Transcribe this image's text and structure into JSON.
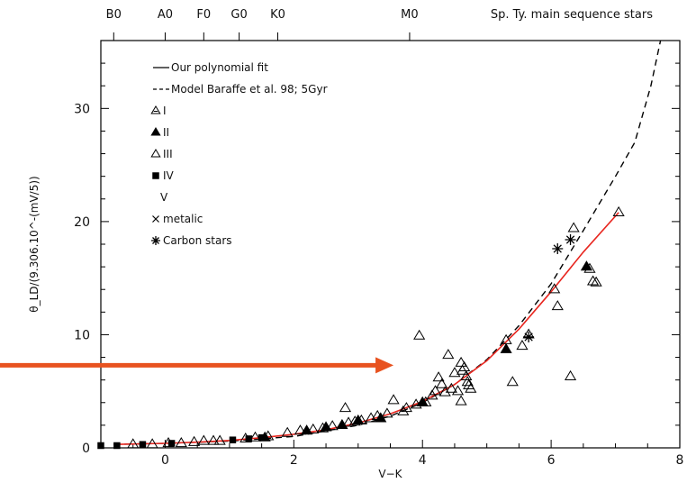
{
  "chart_data": {
    "type": "scatter",
    "xlabel": "V−K",
    "ylabel": "θ_LD/(9.306.10^-(mV/5))",
    "xlim": [
      -1,
      8
    ],
    "ylim": [
      0,
      36
    ],
    "x_ticks": [
      0,
      2,
      4,
      6,
      8
    ],
    "y_ticks": [
      0,
      10,
      20,
      30
    ],
    "top_axis": {
      "title": "Sp. Ty. main sequence stars",
      "labels": [
        {
          "text": "B0",
          "x": -0.8
        },
        {
          "text": "A0",
          "x": 0.0
        },
        {
          "text": "F0",
          "x": 0.6
        },
        {
          "text": "G0",
          "x": 1.15
        },
        {
          "text": "K0",
          "x": 1.75
        },
        {
          "text": "M0",
          "x": 3.8
        }
      ]
    },
    "legend": {
      "placement": "top-left",
      "entries": [
        {
          "label": "Our polynomial fit",
          "marker": "solid-line"
        },
        {
          "label": "Model Baraffe et al. 98; 5Gyr",
          "marker": "dashed-line"
        },
        {
          "label": "I",
          "marker": "triangle-hatched"
        },
        {
          "label": "II",
          "marker": "triangle-filled"
        },
        {
          "label": "III",
          "marker": "triangle-open"
        },
        {
          "label": "IV",
          "marker": "square-filled"
        },
        {
          "label": "V",
          "marker": "none"
        },
        {
          "label": "metalic",
          "marker": "cross"
        },
        {
          "label": "Carbon stars",
          "marker": "asterisk"
        }
      ]
    },
    "series": [
      {
        "name": "III",
        "marker": "triangle-open",
        "points": [
          [
            -0.5,
            0.3
          ],
          [
            -0.2,
            0.3
          ],
          [
            0.05,
            0.4
          ],
          [
            0.25,
            0.4
          ],
          [
            0.45,
            0.5
          ],
          [
            0.6,
            0.6
          ],
          [
            0.75,
            0.6
          ],
          [
            0.85,
            0.6
          ],
          [
            1.25,
            0.8
          ],
          [
            1.4,
            0.9
          ],
          [
            1.6,
            1.0
          ],
          [
            1.9,
            1.3
          ],
          [
            2.1,
            1.5
          ],
          [
            2.3,
            1.6
          ],
          [
            2.45,
            1.7
          ],
          [
            2.6,
            1.9
          ],
          [
            2.8,
            3.5
          ],
          [
            2.85,
            2.2
          ],
          [
            2.95,
            2.3
          ],
          [
            3.05,
            2.4
          ],
          [
            3.2,
            2.6
          ],
          [
            3.3,
            2.8
          ],
          [
            3.45,
            3.0
          ],
          [
            3.55,
            4.2
          ],
          [
            3.7,
            3.2
          ],
          [
            3.75,
            3.5
          ],
          [
            3.9,
            3.8
          ],
          [
            3.95,
            9.9
          ],
          [
            4.05,
            4.0
          ],
          [
            4.15,
            4.6
          ],
          [
            4.2,
            5.0
          ],
          [
            4.25,
            6.2
          ],
          [
            4.3,
            5.6
          ],
          [
            4.35,
            4.9
          ],
          [
            4.4,
            8.2
          ],
          [
            4.45,
            5.2
          ],
          [
            4.5,
            6.6
          ],
          [
            4.55,
            5.0
          ],
          [
            4.6,
            7.5
          ],
          [
            4.62,
            6.8
          ],
          [
            4.65,
            7.1
          ],
          [
            4.68,
            6.3
          ],
          [
            4.7,
            5.8
          ],
          [
            4.72,
            5.5
          ],
          [
            4.75,
            5.2
          ],
          [
            4.6,
            4.1
          ],
          [
            5.3,
            9.5
          ],
          [
            5.4,
            5.8
          ],
          [
            5.55,
            9.0
          ],
          [
            5.65,
            10.0
          ],
          [
            6.05,
            14.0
          ],
          [
            6.1,
            12.5
          ],
          [
            6.3,
            6.3
          ],
          [
            6.35,
            19.4
          ],
          [
            6.6,
            15.8
          ],
          [
            6.65,
            14.7
          ],
          [
            6.7,
            14.6
          ],
          [
            7.05,
            20.8
          ]
        ]
      },
      {
        "name": "II",
        "marker": "triangle-filled",
        "points": [
          [
            1.55,
            0.9
          ],
          [
            2.2,
            1.5
          ],
          [
            2.5,
            1.8
          ],
          [
            2.75,
            2.0
          ],
          [
            3.0,
            2.4
          ],
          [
            3.35,
            2.6
          ],
          [
            4.0,
            4.0
          ],
          [
            5.3,
            8.7
          ],
          [
            6.55,
            16.0
          ]
        ]
      },
      {
        "name": "IV",
        "marker": "square-filled",
        "points": [
          [
            -1.0,
            0.2
          ],
          [
            -0.75,
            0.2
          ],
          [
            -0.35,
            0.3
          ],
          [
            0.1,
            0.4
          ],
          [
            1.05,
            0.7
          ],
          [
            1.3,
            0.8
          ],
          [
            1.5,
            0.9
          ]
        ]
      },
      {
        "name": "Carbon stars",
        "marker": "asterisk",
        "points": [
          [
            5.65,
            9.8
          ],
          [
            6.1,
            17.6
          ],
          [
            6.3,
            18.4
          ]
        ]
      }
    ],
    "fit_line": {
      "name": "Our polynomial fit",
      "color": "#e8261f",
      "points": [
        [
          -0.8,
          0.3
        ],
        [
          0,
          0.4
        ],
        [
          0.5,
          0.5
        ],
        [
          1,
          0.65
        ],
        [
          1.5,
          0.9
        ],
        [
          2,
          1.2
        ],
        [
          2.5,
          1.6
        ],
        [
          3,
          2.2
        ],
        [
          3.5,
          3.0
        ],
        [
          4,
          4.1
        ],
        [
          4.5,
          5.6
        ],
        [
          5,
          7.7
        ],
        [
          5.5,
          10.5
        ],
        [
          6,
          13.8
        ],
        [
          6.5,
          17.3
        ],
        [
          7.05,
          20.8
        ]
      ]
    },
    "model_line": {
      "name": "Model Baraffe et al. 98; 5Gyr",
      "points": [
        [
          -0.8,
          0.3
        ],
        [
          0,
          0.4
        ],
        [
          1,
          0.6
        ],
        [
          2,
          1.0
        ],
        [
          3,
          2.0
        ],
        [
          3.5,
          2.8
        ],
        [
          4,
          4.0
        ],
        [
          4.5,
          5.6
        ],
        [
          5,
          7.8
        ],
        [
          5.5,
          10.8
        ],
        [
          6,
          14.5
        ],
        [
          6.5,
          19.2
        ],
        [
          7,
          24.0
        ],
        [
          7.3,
          27.0
        ],
        [
          7.55,
          32.0
        ],
        [
          7.7,
          36.0
        ]
      ]
    },
    "arrow": {
      "color": "#e8521f",
      "from": [
        -1.0,
        7.3
      ],
      "to": [
        3.55,
        7.3
      ]
    }
  }
}
